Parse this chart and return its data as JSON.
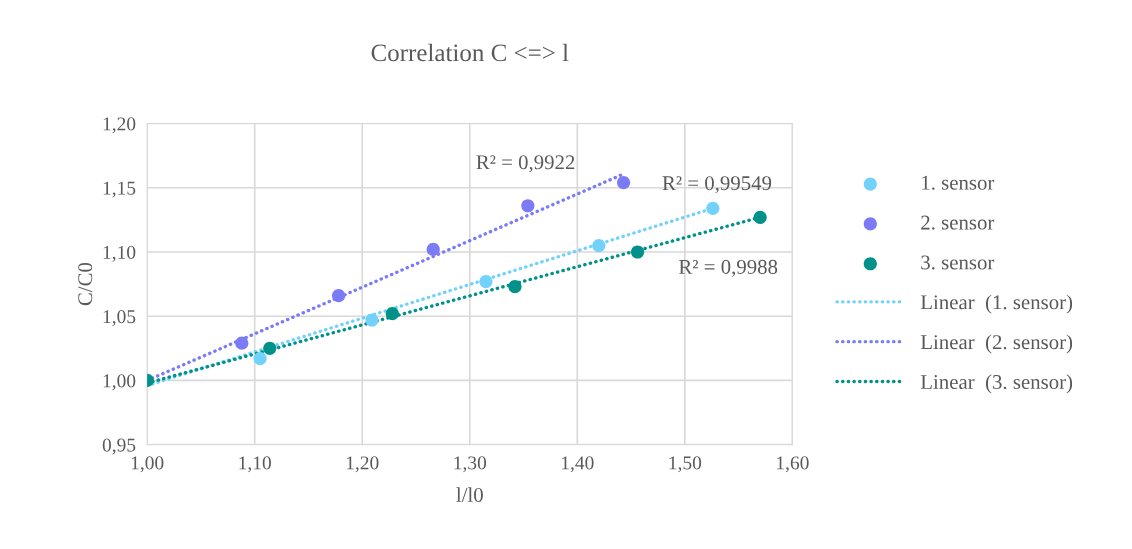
{
  "chart_data": {
    "type": "scatter",
    "title": "Correlation C <=> l",
    "xlabel": "l/l0",
    "ylabel": "C/C0",
    "xlim": [
      1.0,
      1.6
    ],
    "ylim": [
      0.95,
      1.2
    ],
    "xticks": [
      {
        "value": 1.0,
        "label": "1,00"
      },
      {
        "value": 1.1,
        "label": "1,10"
      },
      {
        "value": 1.2,
        "label": "1,20"
      },
      {
        "value": 1.3,
        "label": "1,30"
      },
      {
        "value": 1.4,
        "label": "1,40"
      },
      {
        "value": 1.5,
        "label": "1,50"
      },
      {
        "value": 1.6,
        "label": "1,60"
      }
    ],
    "yticks": [
      {
        "value": 0.95,
        "label": "0,95"
      },
      {
        "value": 1.0,
        "label": "1,00"
      },
      {
        "value": 1.05,
        "label": "1,05"
      },
      {
        "value": 1.1,
        "label": "1,10"
      },
      {
        "value": 1.15,
        "label": "1,15"
      },
      {
        "value": 1.2,
        "label": "1,20"
      }
    ],
    "grid": true,
    "legend": "right",
    "series": [
      {
        "name": "1. sensor",
        "marker": "circle",
        "color": "#73d2fb",
        "x": [
          1.105,
          1.209,
          1.315,
          1.42,
          1.526
        ],
        "values": [
          1.017,
          1.047,
          1.077,
          1.105,
          1.134
        ]
      },
      {
        "name": "2. sensor",
        "marker": "circle",
        "color": "#7b7cf5",
        "x": [
          1.088,
          1.178,
          1.266,
          1.354,
          1.443
        ],
        "values": [
          1.029,
          1.066,
          1.102,
          1.136,
          1.154
        ]
      },
      {
        "name": "3. sensor",
        "marker": "circle",
        "color": "#00918a",
        "x": [
          1.0,
          1.114,
          1.228,
          1.342,
          1.456,
          1.57
        ],
        "values": [
          1.0,
          1.025,
          1.052,
          1.073,
          1.1,
          1.127
        ]
      },
      {
        "name": "Linear  (1. sensor)",
        "type": "line",
        "marker": "none",
        "line_style": "dotted",
        "color": "#73d2fb",
        "x": [
          1.0,
          1.526
        ],
        "values": [
          0.996,
          1.134
        ]
      },
      {
        "name": "Linear  (2. sensor)",
        "type": "line",
        "marker": "none",
        "line_style": "dotted",
        "color": "#7b7cf5",
        "x": [
          1.0,
          1.441
        ],
        "values": [
          1.0,
          1.16
        ]
      },
      {
        "name": "Linear  (3. sensor)",
        "type": "line",
        "marker": "none",
        "line_style": "dotted",
        "color": "#00918a",
        "x": [
          1.0,
          1.57
        ],
        "values": [
          0.998,
          1.127
        ]
      }
    ],
    "annotations": [
      "R² = 0,99549",
      "R² = 0,9922",
      "R² = 0,9988"
    ]
  }
}
